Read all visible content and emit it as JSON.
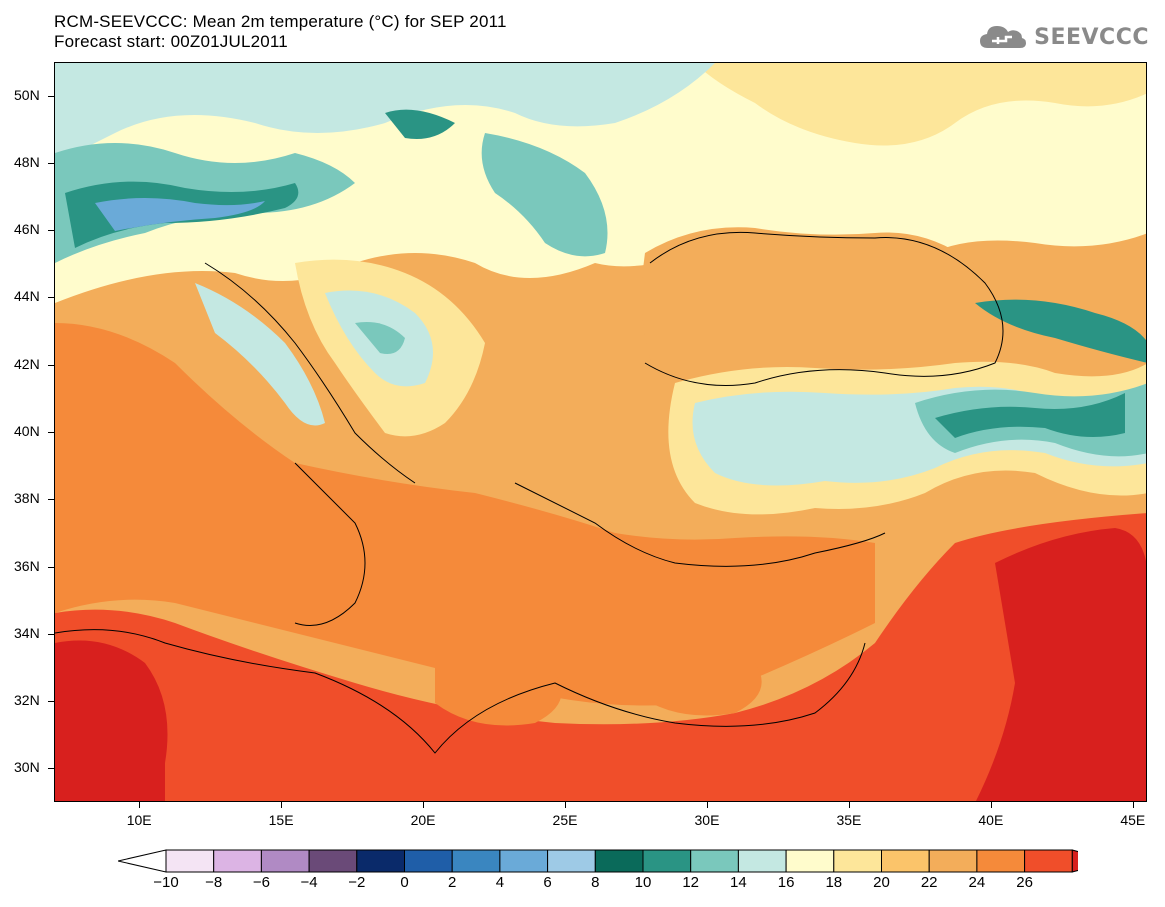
{
  "header": {
    "title_line1": "RCM-SEEVCCC: Mean 2m temperature (°C) for SEP 2011",
    "title_line2": "Forecast start: 00Z01JUL2011"
  },
  "logo": {
    "text": "SEEVCCC",
    "icon": "cloud-icon"
  },
  "map": {
    "lat_labels": [
      "50N",
      "48N",
      "46N",
      "44N",
      "42N",
      "40N",
      "38N",
      "36N",
      "34N",
      "32N",
      "30N"
    ],
    "lon_labels": [
      "10E",
      "15E",
      "20E",
      "25E",
      "30E",
      "35E",
      "40E",
      "45E"
    ],
    "lon_range": [
      7,
      45.5
    ],
    "lat_range": [
      29,
      51
    ]
  },
  "legend": {
    "labels": [
      "-10",
      "-8",
      "-6",
      "-4",
      "-2",
      "0",
      "2",
      "4",
      "6",
      "8",
      "10",
      "12",
      "14",
      "16",
      "18",
      "20",
      "22",
      "24",
      "26"
    ],
    "colors": [
      "#f4e4f4",
      "#dcb4e4",
      "#b08ac4",
      "#6a4a78",
      "#0a2a6a",
      "#1f5ea8",
      "#3a86c0",
      "#6aaad8",
      "#9ecae6",
      "#0a6a5a",
      "#2a9484",
      "#7ac8bc",
      "#c4e8e2",
      "#fffccc",
      "#fde69a",
      "#fbc46a",
      "#f3ad5a",
      "#f58a3a",
      "#f04e2a"
    ],
    "under_color": "#ffffff",
    "over_color": "#d8201e"
  }
}
